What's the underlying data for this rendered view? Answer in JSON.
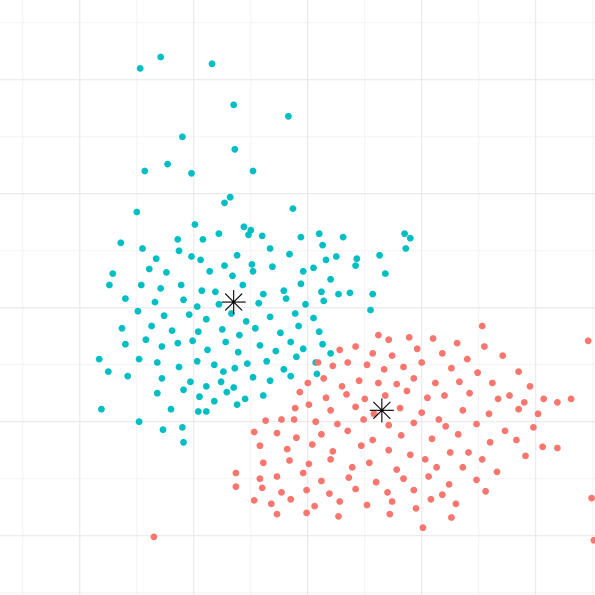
{
  "chart_data": {
    "type": "scatter",
    "title": "",
    "xlabel": "",
    "ylabel": "",
    "xlim": [
      -0.7,
      4.52
    ],
    "ylim": [
      -0.52,
      4.7
    ],
    "grid": true,
    "legend": "none",
    "series": [
      {
        "color": "#00BFC4",
        "centroid": [
          1.35,
          2.05
        ],
        "points": [
          [
            0.53,
            4.1
          ],
          [
            0.71,
            4.2
          ],
          [
            1.16,
            4.14
          ],
          [
            1.35,
            3.78
          ],
          [
            1.83,
            3.68
          ],
          [
            0.9,
            3.5
          ],
          [
            1.36,
            3.39
          ],
          [
            0.57,
            3.2
          ],
          [
            0.77,
            3.26
          ],
          [
            0.98,
            3.18
          ],
          [
            1.52,
            3.2
          ],
          [
            1.32,
            2.97
          ],
          [
            1.27,
            2.92
          ],
          [
            0.5,
            2.84
          ],
          [
            1.87,
            2.87
          ],
          [
            1.01,
            2.73
          ],
          [
            1.22,
            2.65
          ],
          [
            0.86,
            2.6
          ],
          [
            1.08,
            2.6
          ],
          [
            1.5,
            2.68
          ],
          [
            1.6,
            2.63
          ],
          [
            1.44,
            2.71
          ],
          [
            1.48,
            2.64
          ],
          [
            1.94,
            2.62
          ],
          [
            2.1,
            2.65
          ],
          [
            2.31,
            2.62
          ],
          [
            2.85,
            2.65
          ],
          [
            2.9,
            2.61
          ],
          [
            0.36,
            2.57
          ],
          [
            0.55,
            2.52
          ],
          [
            0.87,
            2.5
          ],
          [
            0.98,
            2.45
          ],
          [
            0.67,
            2.43
          ],
          [
            1.06,
            2.42
          ],
          [
            1.38,
            2.46
          ],
          [
            1.67,
            2.52
          ],
          [
            1.51,
            2.38
          ],
          [
            1.84,
            2.47
          ],
          [
            2.13,
            2.55
          ],
          [
            2.16,
            2.42
          ],
          [
            2.25,
            2.45
          ],
          [
            2.43,
            2.43
          ],
          [
            2.63,
            2.46
          ],
          [
            2.86,
            2.52
          ],
          [
            0.29,
            2.3
          ],
          [
            0.61,
            2.34
          ],
          [
            0.76,
            2.31
          ],
          [
            1.14,
            2.32
          ],
          [
            1.27,
            2.37
          ],
          [
            1.34,
            2.28
          ],
          [
            1.52,
            2.32
          ],
          [
            1.69,
            2.36
          ],
          [
            1.96,
            2.32
          ],
          [
            2.05,
            2.35
          ],
          [
            2.42,
            2.37
          ],
          [
            2.2,
            2.25
          ],
          [
            0.26,
            2.2
          ],
          [
            0.54,
            2.2
          ],
          [
            0.71,
            2.17
          ],
          [
            0.89,
            2.2
          ],
          [
            1.07,
            2.15
          ],
          [
            1.19,
            2.14
          ],
          [
            1.43,
            2.2
          ],
          [
            1.61,
            2.12
          ],
          [
            1.79,
            2.15
          ],
          [
            1.94,
            2.21
          ],
          [
            2.12,
            2.14
          ],
          [
            2.27,
            2.12
          ],
          [
            2.68,
            2.3
          ],
          [
            0.4,
            2.08
          ],
          [
            0.66,
            2.05
          ],
          [
            0.91,
            2.07
          ],
          [
            1.03,
            2.01
          ],
          [
            1.22,
            2.03
          ],
          [
            1.57,
            2.04
          ],
          [
            1.81,
            2.08
          ],
          [
            1.98,
            2.03
          ],
          [
            2.14,
            2.06
          ],
          [
            2.37,
            2.13
          ],
          [
            2.57,
            2.12
          ],
          [
            0.51,
            1.97
          ],
          [
            0.74,
            1.93
          ],
          [
            0.96,
            1.94
          ],
          [
            1.11,
            1.9
          ],
          [
            1.33,
            1.95
          ],
          [
            1.46,
            1.88
          ],
          [
            1.67,
            1.92
          ],
          [
            1.89,
            1.95
          ],
          [
            2.05,
            1.91
          ],
          [
            2.55,
            1.98
          ],
          [
            0.37,
            1.82
          ],
          [
            0.63,
            1.84
          ],
          [
            0.81,
            1.8
          ],
          [
            1.04,
            1.79
          ],
          [
            1.25,
            1.81
          ],
          [
            1.4,
            1.76
          ],
          [
            1.54,
            1.82
          ],
          [
            1.76,
            1.78
          ],
          [
            1.92,
            1.84
          ],
          [
            2.1,
            1.79
          ],
          [
            0.4,
            1.68
          ],
          [
            0.58,
            1.72
          ],
          [
            0.72,
            1.66
          ],
          [
            0.86,
            1.69
          ],
          [
            0.99,
            1.71
          ],
          [
            1.12,
            1.63
          ],
          [
            1.28,
            1.7
          ],
          [
            1.39,
            1.61
          ],
          [
            1.58,
            1.67
          ],
          [
            1.72,
            1.62
          ],
          [
            1.85,
            1.7
          ],
          [
            1.96,
            1.64
          ],
          [
            2.13,
            1.68
          ],
          [
            2.2,
            1.6
          ],
          [
            0.17,
            1.55
          ],
          [
            0.52,
            1.55
          ],
          [
            0.68,
            1.52
          ],
          [
            0.87,
            1.48
          ],
          [
            1.03,
            1.53
          ],
          [
            1.18,
            1.5
          ],
          [
            1.26,
            1.44
          ],
          [
            1.36,
            1.47
          ],
          [
            1.47,
            1.51
          ],
          [
            1.64,
            1.53
          ],
          [
            1.79,
            1.46
          ],
          [
            1.9,
            1.57
          ],
          [
            2.07,
            1.52
          ],
          [
            0.25,
            1.44
          ],
          [
            0.42,
            1.4
          ],
          [
            0.72,
            1.38
          ],
          [
            0.97,
            1.35
          ],
          [
            1.11,
            1.31
          ],
          [
            1.24,
            1.35
          ],
          [
            1.35,
            1.3
          ],
          [
            1.52,
            1.39
          ],
          [
            1.67,
            1.36
          ],
          [
            1.85,
            1.4
          ],
          [
            2.08,
            1.42
          ],
          [
            0.68,
            1.25
          ],
          [
            0.91,
            1.28
          ],
          [
            1.05,
            1.22
          ],
          [
            1.18,
            1.18
          ],
          [
            1.29,
            1.26
          ],
          [
            1.45,
            1.2
          ],
          [
            1.61,
            1.23
          ],
          [
            1.38,
            1.15
          ],
          [
            1.11,
            1.09
          ],
          [
            0.8,
            1.11
          ],
          [
            0.19,
            1.11
          ],
          [
            0.52,
            1.0
          ],
          [
            0.73,
            0.93
          ],
          [
            0.9,
            0.95
          ],
          [
            0.91,
            0.82
          ],
          [
            1.04,
            1.09
          ]
        ]
      },
      {
        "color": "#F8766D",
        "centroid": [
          2.65,
          1.1
        ],
        "points": [
          [
            3.53,
            1.84
          ],
          [
            4.46,
            1.71
          ],
          [
            2.62,
            1.76
          ],
          [
            2.71,
            1.72
          ],
          [
            2.89,
            1.74
          ],
          [
            3.1,
            1.73
          ],
          [
            3.31,
            1.69
          ],
          [
            3.55,
            1.66
          ],
          [
            2.28,
            1.63
          ],
          [
            2.42,
            1.66
          ],
          [
            2.57,
            1.6
          ],
          [
            2.74,
            1.58
          ],
          [
            2.96,
            1.64
          ],
          [
            3.18,
            1.6
          ],
          [
            3.4,
            1.55
          ],
          [
            3.71,
            1.58
          ],
          [
            2.09,
            1.52
          ],
          [
            2.22,
            1.49
          ],
          [
            2.35,
            1.52
          ],
          [
            2.52,
            1.5
          ],
          [
            2.67,
            1.46
          ],
          [
            2.84,
            1.48
          ],
          [
            3.0,
            1.52
          ],
          [
            3.26,
            1.47
          ],
          [
            3.49,
            1.43
          ],
          [
            3.85,
            1.44
          ],
          [
            3.95,
            1.31
          ],
          [
            2.0,
            1.34
          ],
          [
            2.14,
            1.38
          ],
          [
            2.3,
            1.31
          ],
          [
            2.45,
            1.36
          ],
          [
            2.62,
            1.34
          ],
          [
            2.78,
            1.33
          ],
          [
            2.93,
            1.38
          ],
          [
            3.12,
            1.34
          ],
          [
            3.33,
            1.35
          ],
          [
            3.62,
            1.34
          ],
          [
            3.77,
            1.23
          ],
          [
            3.9,
            1.17
          ],
          [
            4.07,
            1.2
          ],
          [
            4.31,
            1.2
          ],
          [
            4.19,
            1.17
          ],
          [
            1.93,
            1.26
          ],
          [
            2.16,
            1.21
          ],
          [
            2.34,
            1.24
          ],
          [
            2.5,
            1.2
          ],
          [
            2.68,
            1.23
          ],
          [
            2.87,
            1.27
          ],
          [
            3.05,
            1.21
          ],
          [
            3.2,
            1.23
          ],
          [
            3.42,
            1.25
          ],
          [
            3.67,
            1.2
          ],
          [
            1.89,
            1.12
          ],
          [
            2.01,
            1.15
          ],
          [
            2.2,
            1.1
          ],
          [
            2.42,
            1.13
          ],
          [
            2.58,
            1.07
          ],
          [
            2.81,
            1.12
          ],
          [
            3.0,
            1.08
          ],
          [
            3.15,
            1.02
          ],
          [
            3.36,
            1.1
          ],
          [
            3.59,
            1.07
          ],
          [
            3.85,
            1.11
          ],
          [
            4.02,
            1.07
          ],
          [
            1.63,
            1.01
          ],
          [
            1.77,
            1.02
          ],
          [
            1.88,
            1.02
          ],
          [
            2.07,
            1.0
          ],
          [
            2.26,
            0.98
          ],
          [
            2.49,
            1.02
          ],
          [
            2.71,
            0.97
          ],
          [
            2.93,
            0.99
          ],
          [
            3.21,
            0.96
          ],
          [
            3.48,
            0.98
          ],
          [
            3.73,
            0.92
          ],
          [
            3.98,
            0.95
          ],
          [
            1.53,
            0.91
          ],
          [
            1.73,
            0.9
          ],
          [
            1.9,
            0.86
          ],
          [
            2.12,
            0.89
          ],
          [
            2.35,
            0.92
          ],
          [
            2.57,
            0.84
          ],
          [
            2.82,
            0.88
          ],
          [
            3.09,
            0.85
          ],
          [
            3.32,
            0.89
          ],
          [
            3.6,
            0.82
          ],
          [
            3.83,
            0.84
          ],
          [
            4.06,
            0.78
          ],
          [
            4.19,
            0.77
          ],
          [
            1.58,
            0.79
          ],
          [
            1.82,
            0.76
          ],
          [
            2.04,
            0.8
          ],
          [
            2.22,
            0.74
          ],
          [
            2.47,
            0.79
          ],
          [
            2.71,
            0.75
          ],
          [
            2.9,
            0.71
          ],
          [
            3.03,
            0.67
          ],
          [
            3.25,
            0.73
          ],
          [
            3.41,
            0.73
          ],
          [
            3.53,
            0.67
          ],
          [
            3.91,
            0.7
          ],
          [
            1.61,
            0.64
          ],
          [
            1.84,
            0.66
          ],
          [
            2.01,
            0.63
          ],
          [
            2.2,
            0.67
          ],
          [
            2.39,
            0.6
          ],
          [
            2.54,
            0.64
          ],
          [
            2.78,
            0.58
          ],
          [
            3.13,
            0.6
          ],
          [
            3.36,
            0.6
          ],
          [
            3.66,
            0.56
          ],
          [
            1.37,
            0.55
          ],
          [
            1.58,
            0.5
          ],
          [
            1.73,
            0.52
          ],
          [
            1.96,
            0.55
          ],
          [
            2.12,
            0.48
          ],
          [
            2.36,
            0.51
          ],
          [
            2.6,
            0.47
          ],
          [
            2.84,
            0.5
          ],
          [
            3.06,
            0.52
          ],
          [
            3.24,
            0.45
          ],
          [
            3.48,
            0.49
          ],
          [
            1.37,
            0.43
          ],
          [
            1.6,
            0.42
          ],
          [
            1.77,
            0.38
          ],
          [
            1.99,
            0.4
          ],
          [
            2.19,
            0.37
          ],
          [
            2.42,
            0.41
          ],
          [
            2.7,
            0.38
          ],
          [
            2.93,
            0.4
          ],
          [
            3.18,
            0.36
          ],
          [
            3.56,
            0.39
          ],
          [
            4.49,
            0.33
          ],
          [
            1.53,
            0.31
          ],
          [
            1.68,
            0.28
          ],
          [
            1.85,
            0.32
          ],
          [
            2.06,
            0.26
          ],
          [
            2.28,
            0.3
          ],
          [
            2.52,
            0.27
          ],
          [
            2.74,
            0.3
          ],
          [
            2.95,
            0.24
          ],
          [
            3.08,
            0.32
          ],
          [
            3.3,
            0.28
          ],
          [
            1.73,
            0.19
          ],
          [
            1.99,
            0.2
          ],
          [
            2.27,
            0.17
          ],
          [
            2.72,
            0.19
          ],
          [
            3.26,
            0.16
          ],
          [
            3.01,
            0.07
          ],
          [
            4.51,
            -0.04
          ],
          [
            0.65,
            -0.01
          ]
        ]
      }
    ],
    "markers": [
      {
        "symbol": "asterisk",
        "x": 1.35,
        "y": 2.05
      },
      {
        "symbol": "asterisk",
        "x": 2.65,
        "y": 1.1
      }
    ]
  }
}
